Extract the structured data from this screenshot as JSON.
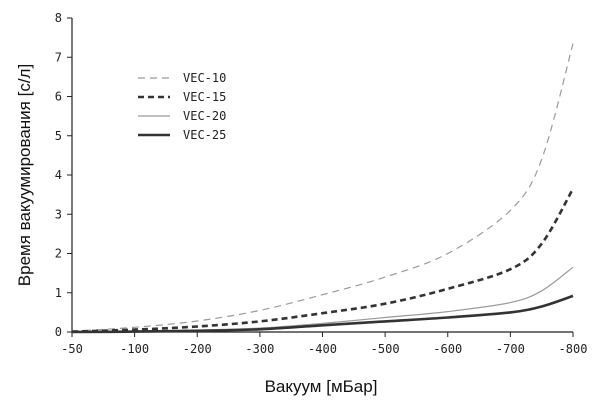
{
  "chart_data": {
    "type": "line",
    "title": "",
    "xlabel": "Вакуум [мБар]",
    "ylabel": "Время вакуумирования [с/л]",
    "xlim": [
      -50,
      -800
    ],
    "ylim": [
      0,
      8
    ],
    "x_ticks": [
      "-50",
      "-100",
      "-200",
      "-300",
      "-400",
      "-500",
      "-600",
      "-700",
      "-800"
    ],
    "y_ticks": [
      "0",
      "1",
      "2",
      "3",
      "4",
      "5",
      "6",
      "7",
      "8"
    ],
    "grid": false,
    "legend_position": "upper-left",
    "x": [
      -50,
      -100,
      -200,
      -300,
      -400,
      -500,
      -600,
      -700,
      -750,
      -800
    ],
    "series": [
      {
        "name": "VEC-10",
        "values": [
          0.02,
          0.12,
          0.28,
          0.55,
          0.95,
          1.4,
          2.0,
          3.1,
          4.4,
          7.35
        ],
        "color": "#9a9a9a",
        "dash": "7,5",
        "width": 1.2
      },
      {
        "name": "VEC-15",
        "values": [
          0.01,
          0.06,
          0.14,
          0.27,
          0.48,
          0.72,
          1.1,
          1.6,
          2.25,
          3.65
        ],
        "color": "#333333",
        "dash": "6,4",
        "width": 2.6
      },
      {
        "name": "VEC-20",
        "values": [
          0.0,
          0.02,
          0.05,
          0.1,
          0.22,
          0.37,
          0.52,
          0.75,
          1.05,
          1.65
        ],
        "color": "#9a9a9a",
        "dash": "",
        "width": 1.2
      },
      {
        "name": "VEC-25",
        "values": [
          0.0,
          0.01,
          0.03,
          0.07,
          0.17,
          0.27,
          0.37,
          0.5,
          0.65,
          0.92
        ],
        "color": "#333333",
        "dash": "",
        "width": 2.6
      }
    ]
  }
}
